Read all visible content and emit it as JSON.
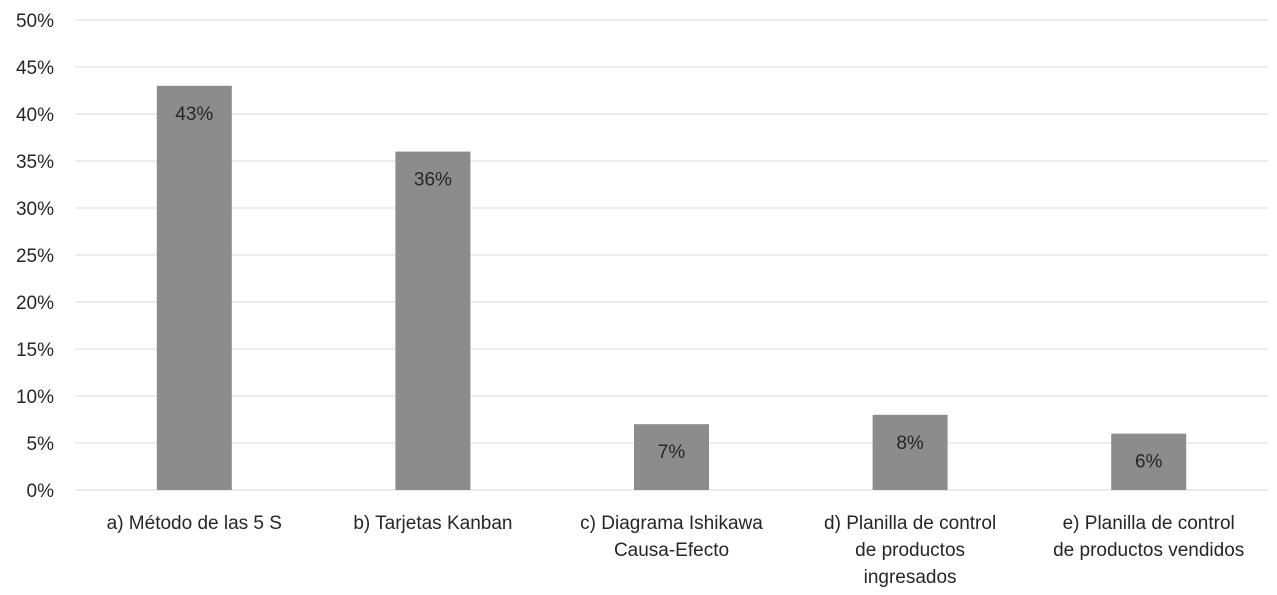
{
  "chart_data": {
    "type": "bar",
    "title": "",
    "xlabel": "",
    "ylabel": "",
    "categories": [
      "a) Método de las 5 S",
      "b) Tarjetas Kanban",
      "c) Diagrama Ishikawa\nCausa-Efecto",
      "d) Planilla de control\nde productos\ningresados",
      "e) Planilla de control\nde productos vendidos"
    ],
    "values": [
      43,
      36,
      7,
      8,
      6
    ],
    "data_labels": [
      "43%",
      "36%",
      "7%",
      "8%",
      "6%"
    ],
    "ylim": [
      0,
      50
    ],
    "y_ticks": [
      0,
      5,
      10,
      15,
      20,
      25,
      30,
      35,
      40,
      45,
      50
    ],
    "y_tick_labels": [
      "0%",
      "5%",
      "10%",
      "15%",
      "20%",
      "25%",
      "30%",
      "35%",
      "40%",
      "45%",
      "50%"
    ],
    "grid": true,
    "legend": "none",
    "colors": {
      "bar": "#8c8c8c",
      "bar_label": "#262626",
      "grid": "#d9d9d9",
      "axis_text": "#262626"
    }
  }
}
